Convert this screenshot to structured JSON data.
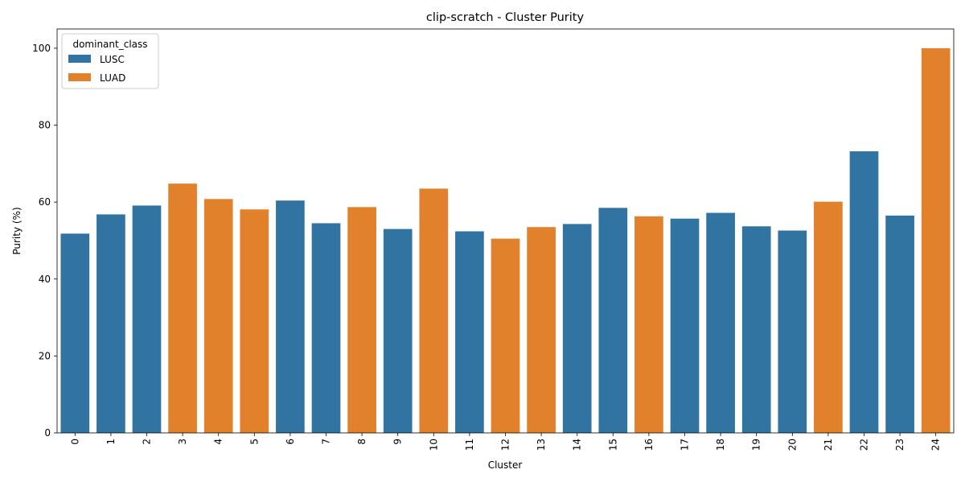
{
  "chart_data": {
    "type": "bar",
    "title": "clip-scratch - Cluster Purity",
    "xlabel": "Cluster",
    "ylabel": "Purity (%)",
    "ylim": [
      0,
      105
    ],
    "yticks": [
      0,
      20,
      40,
      60,
      80,
      100
    ],
    "categories": [
      "0",
      "1",
      "2",
      "3",
      "4",
      "5",
      "6",
      "7",
      "8",
      "9",
      "10",
      "11",
      "12",
      "13",
      "14",
      "15",
      "16",
      "17",
      "18",
      "19",
      "20",
      "21",
      "22",
      "23",
      "24"
    ],
    "values": [
      51.8,
      56.8,
      59.1,
      64.8,
      60.8,
      58.1,
      60.4,
      54.5,
      58.7,
      53.0,
      63.5,
      52.4,
      50.5,
      53.5,
      54.3,
      58.5,
      56.3,
      55.7,
      57.2,
      53.7,
      52.6,
      60.1,
      73.2,
      56.5,
      100.0
    ],
    "dominant_class": [
      "LUSC",
      "LUSC",
      "LUSC",
      "LUAD",
      "LUAD",
      "LUAD",
      "LUSC",
      "LUSC",
      "LUAD",
      "LUSC",
      "LUAD",
      "LUSC",
      "LUAD",
      "LUAD",
      "LUSC",
      "LUSC",
      "LUAD",
      "LUSC",
      "LUSC",
      "LUSC",
      "LUSC",
      "LUAD",
      "LUSC",
      "LUSC",
      "LUAD"
    ],
    "legend": {
      "title": "dominant_class",
      "placement": "top-left",
      "entries": [
        {
          "name": "LUSC",
          "color": "#3274a1"
        },
        {
          "name": "LUAD",
          "color": "#e1812c"
        }
      ]
    },
    "grid": false
  }
}
